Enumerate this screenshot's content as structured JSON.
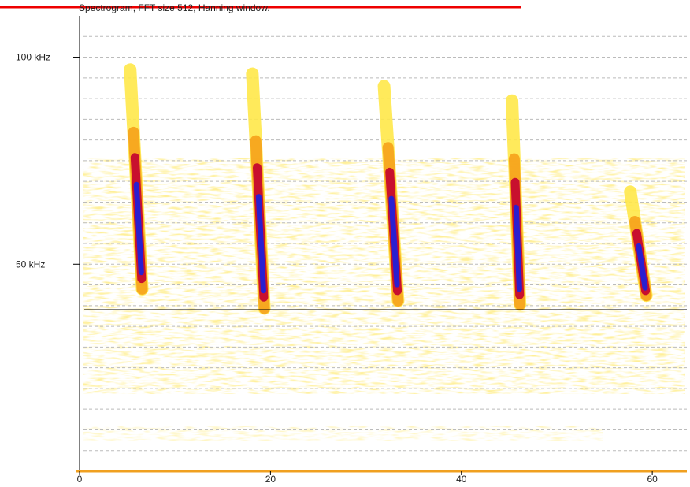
{
  "chart_data": {
    "type": "spectrogram",
    "title": "Spectrogram, FFT size 512, Hanning window.",
    "xlim": [
      0,
      64
    ],
    "xticks": [
      0,
      20,
      40,
      60
    ],
    "ylim": [
      0,
      110
    ],
    "yticks": [
      {
        "value": 50,
        "label": "50 kHz"
      },
      {
        "value": 100,
        "label": "100 kHz"
      }
    ],
    "minor_yticks": [
      5,
      10,
      15,
      20,
      25,
      30,
      35,
      40,
      45,
      55,
      60,
      65,
      70,
      75,
      80,
      85,
      90,
      95,
      105
    ],
    "reference_line": 39,
    "calls": [
      {
        "x0": 5.3,
        "f0": 97,
        "x1": 6.5,
        "f1": 46.5
      },
      {
        "x0": 18.1,
        "f0": 96,
        "x1": 19.3,
        "f1": 42
      },
      {
        "x0": 31.9,
        "f0": 93,
        "x1": 33.3,
        "f1": 43.6
      },
      {
        "x0": 45.3,
        "f0": 89.5,
        "x1": 46.1,
        "f1": 42.6
      },
      {
        "x0": 57.7,
        "f0": 67.5,
        "x1": 59.3,
        "f1": 43.6
      }
    ]
  }
}
